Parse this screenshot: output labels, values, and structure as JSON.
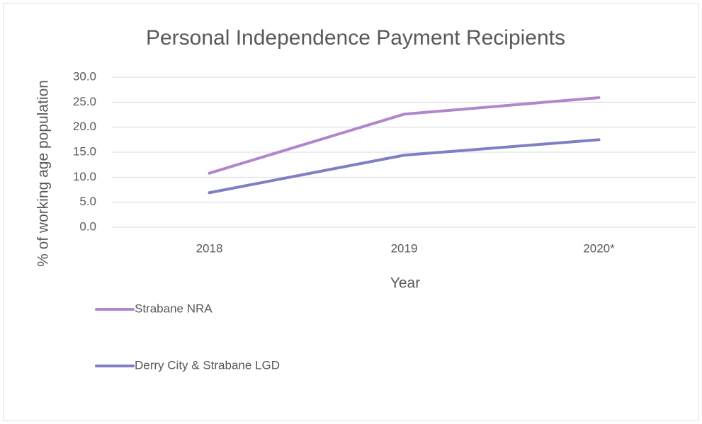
{
  "chart_data": {
    "type": "line",
    "title": "Personal Independence Payment Recipients",
    "x_label": "Year",
    "y_label": "% of working age population",
    "categories": [
      "2018",
      "2019",
      "2020*"
    ],
    "series": [
      {
        "name": "Strabane NRA",
        "color": "#b087cb",
        "values": [
          10.8,
          22.6,
          25.9
        ]
      },
      {
        "name": "Derry City & Strabane LGD",
        "color": "#7f7fc5",
        "values": [
          6.9,
          14.4,
          17.5
        ]
      }
    ],
    "ylim": [
      0,
      30
    ],
    "yticks": [
      {
        "value": 0,
        "label": "0.0"
      },
      {
        "value": 5,
        "label": "5.0"
      },
      {
        "value": 10,
        "label": "10.0"
      },
      {
        "value": 15,
        "label": "15.0"
      },
      {
        "value": 20,
        "label": "20.0"
      },
      {
        "value": 25,
        "label": "25.0"
      },
      {
        "value": 30,
        "label": "30.0"
      }
    ],
    "grid": true,
    "legend": "bottom-left"
  }
}
